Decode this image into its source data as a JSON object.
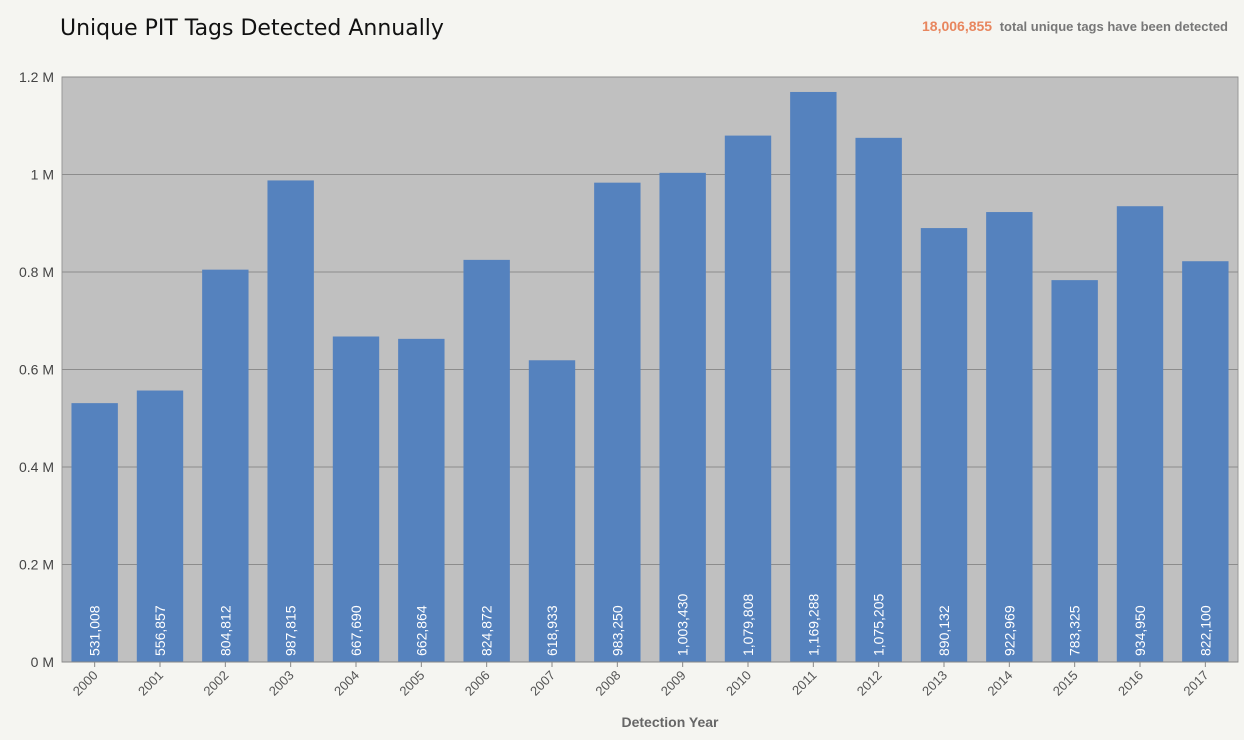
{
  "header": {
    "title": "Unique PIT Tags Detected Annually",
    "total_value": "18,006,855",
    "total_text": "total unique tags have been detected"
  },
  "chart_data": {
    "type": "bar",
    "title": "Unique PIT Tags Detected Annually",
    "xlabel": "Detection Year",
    "ylabel": "",
    "ylim": [
      0,
      1200000
    ],
    "yticks": [
      0,
      200000,
      400000,
      600000,
      800000,
      1000000,
      1200000
    ],
    "ytick_labels": [
      "0 M",
      "0.2 M",
      "0.4 M",
      "0.6 M",
      "0.8 M",
      "1 M",
      "1.2 M"
    ],
    "grid": true,
    "legend": "none",
    "bar_color": "#5582be",
    "plot_background": "#c0c0c0",
    "categories": [
      "2000",
      "2001",
      "2002",
      "2003",
      "2004",
      "2005",
      "2006",
      "2007",
      "2008",
      "2009",
      "2010",
      "2011",
      "2012",
      "2013",
      "2014",
      "2015",
      "2016",
      "2017"
    ],
    "values": [
      531008,
      556857,
      804812,
      987815,
      667690,
      662864,
      824872,
      618933,
      983250,
      1003430,
      1079808,
      1169288,
      1075205,
      890132,
      922969,
      783325,
      934950,
      822100
    ],
    "data_labels": [
      "531,008",
      "556,857",
      "804,812",
      "987,815",
      "667,690",
      "662,864",
      "824,872",
      "618,933",
      "983,250",
      "1,003,430",
      "1,079,808",
      "1,169,288",
      "1,075,205",
      "890,132",
      "922,969",
      "783,325",
      "934,950",
      "822,100"
    ]
  }
}
